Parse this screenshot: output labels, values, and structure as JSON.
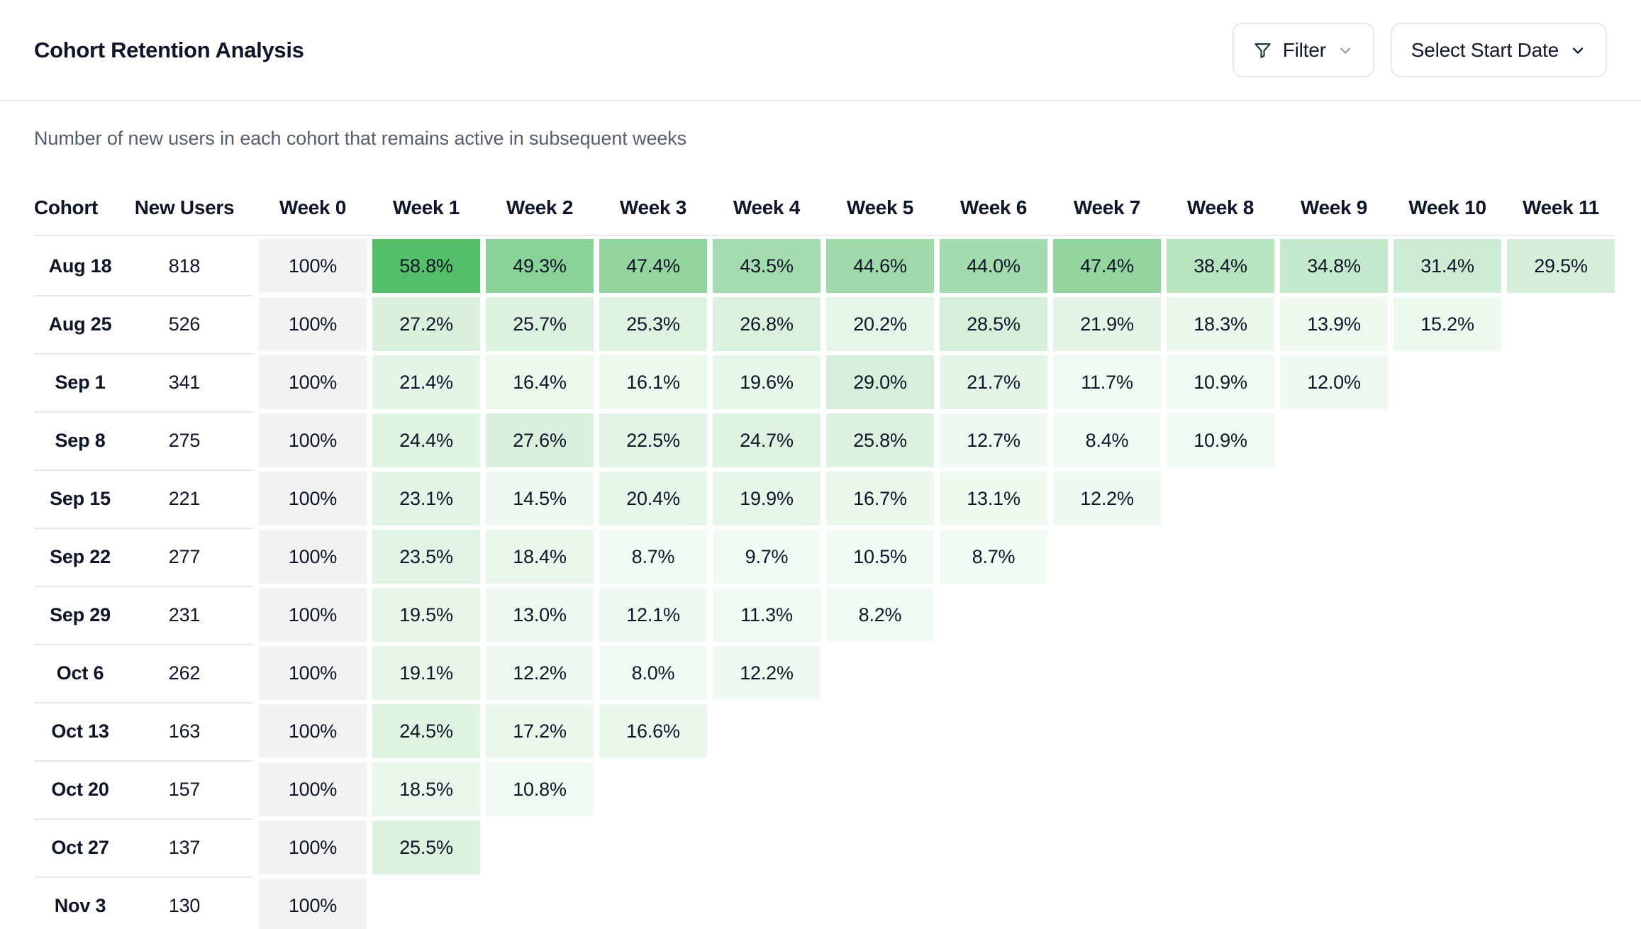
{
  "header": {
    "title": "Cohort Retention Analysis",
    "filter_button": {
      "label": "Filter"
    },
    "date_button": {
      "label": "Select Start Date"
    }
  },
  "subtitle": "Number of new users in each cohort that remains active in subsequent weeks",
  "colors": {
    "accent_green": "#22aa3c",
    "accent_green_rgb": "34,170,60",
    "week0_cell_bg": "#f2f2f3",
    "text_dark": "#0e1626",
    "divider": "#eaebed"
  },
  "chart_data": {
    "type": "heatmap",
    "title": "Cohort Retention Analysis",
    "subtitle": "Number of new users in each cohort that remains active in subsequent weeks",
    "columns": [
      "Cohort",
      "New Users",
      "Week 0",
      "Week 1",
      "Week 2",
      "Week 3",
      "Week 4",
      "Week 5",
      "Week 6",
      "Week 7",
      "Week 8",
      "Week 9",
      "Week 10",
      "Week 11"
    ],
    "value_unit": "%",
    "legend_position": "none",
    "rows": [
      {
        "cohort": "Aug 18",
        "new_users": 818,
        "retention_pct": [
          100,
          58.8,
          49.3,
          47.4,
          43.5,
          44.6,
          44.0,
          47.4,
          38.4,
          34.8,
          31.4,
          29.5
        ]
      },
      {
        "cohort": "Aug 25",
        "new_users": 526,
        "retention_pct": [
          100,
          27.2,
          25.7,
          25.3,
          26.8,
          20.2,
          28.5,
          21.9,
          18.3,
          13.9,
          15.2
        ]
      },
      {
        "cohort": "Sep 1",
        "new_users": 341,
        "retention_pct": [
          100,
          21.4,
          16.4,
          16.1,
          19.6,
          29.0,
          21.7,
          11.7,
          10.9,
          12.0
        ]
      },
      {
        "cohort": "Sep 8",
        "new_users": 275,
        "retention_pct": [
          100,
          24.4,
          27.6,
          22.5,
          24.7,
          25.8,
          12.7,
          8.4,
          10.9
        ]
      },
      {
        "cohort": "Sep 15",
        "new_users": 221,
        "retention_pct": [
          100,
          23.1,
          14.5,
          20.4,
          19.9,
          16.7,
          13.1,
          12.2
        ]
      },
      {
        "cohort": "Sep 22",
        "new_users": 277,
        "retention_pct": [
          100,
          23.5,
          18.4,
          8.7,
          9.7,
          10.5,
          8.7
        ]
      },
      {
        "cohort": "Sep 29",
        "new_users": 231,
        "retention_pct": [
          100,
          19.5,
          13.0,
          12.1,
          11.3,
          8.2
        ]
      },
      {
        "cohort": "Oct 6",
        "new_users": 262,
        "retention_pct": [
          100,
          19.1,
          12.2,
          8.0,
          12.2
        ]
      },
      {
        "cohort": "Oct 13",
        "new_users": 163,
        "retention_pct": [
          100,
          24.5,
          17.2,
          16.6
        ]
      },
      {
        "cohort": "Oct 20",
        "new_users": 157,
        "retention_pct": [
          100,
          18.5,
          10.8
        ]
      },
      {
        "cohort": "Oct 27",
        "new_users": 137,
        "retention_pct": [
          100,
          25.5
        ]
      },
      {
        "cohort": "Nov 3",
        "new_users": 130,
        "retention_pct": [
          100
        ]
      }
    ]
  }
}
